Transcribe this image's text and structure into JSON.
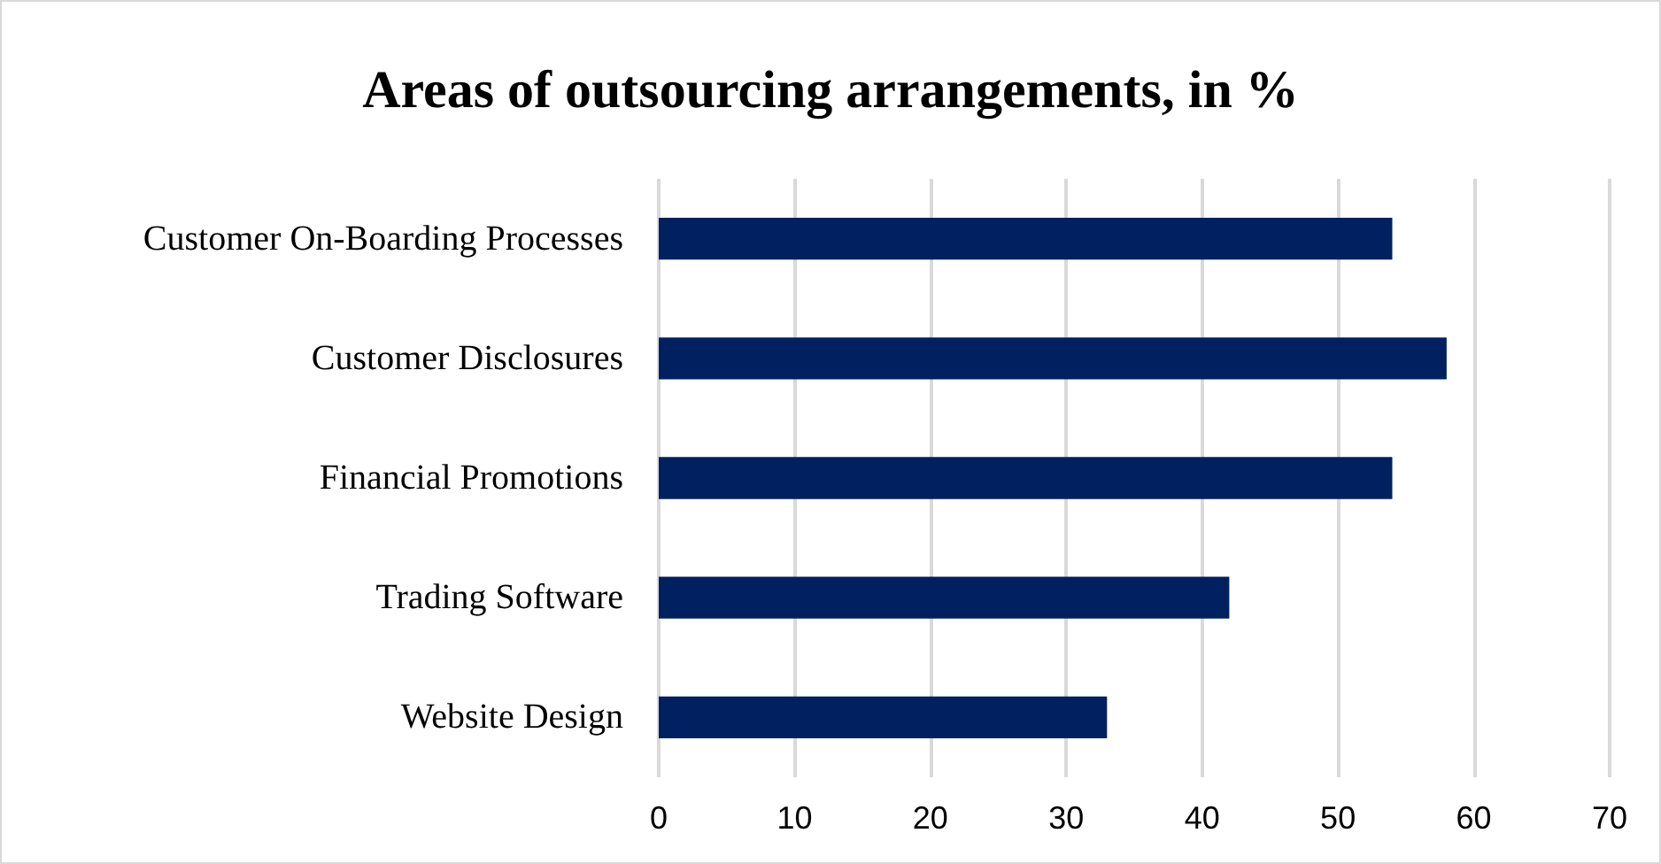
{
  "chart_data": {
    "type": "bar",
    "orientation": "horizontal",
    "title": "Areas of outsourcing arrangements, in %",
    "categories": [
      "Customer On-Boarding Processes",
      "Customer Disclosures",
      "Financial Promotions",
      "Trading Software",
      "Website Design"
    ],
    "values": [
      54,
      58,
      54,
      42,
      33
    ],
    "color": "#002060",
    "xlim": [
      0,
      70
    ],
    "xticks": [
      0,
      10,
      20,
      30,
      40,
      50,
      60,
      70
    ],
    "grid": "x"
  }
}
